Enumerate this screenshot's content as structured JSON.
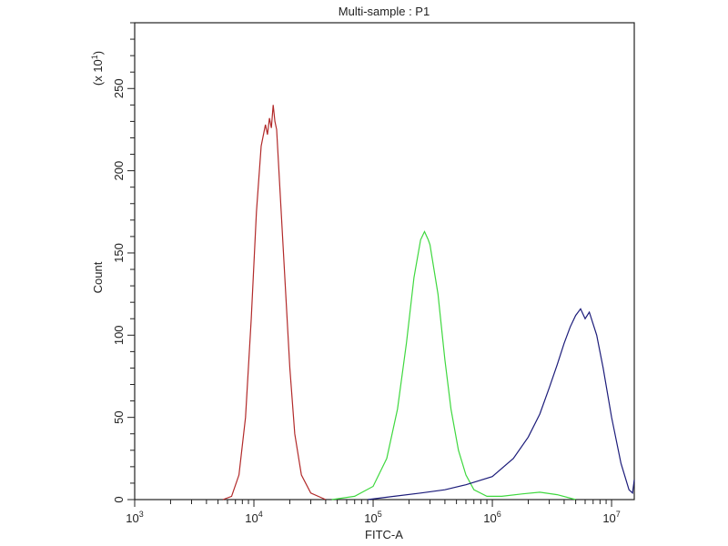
{
  "chart_data": {
    "type": "line",
    "title": "Multi-sample : P1",
    "xlabel": "FITC-A",
    "ylabel": "Count",
    "y_multiplier_label": {
      "base": "(x 10",
      "exp": "1",
      "close": ")"
    },
    "x_scale": "log",
    "xlim": [
      1000,
      15500000
    ],
    "ylim": [
      0,
      290
    ],
    "x_ticks": [
      {
        "value": 1000,
        "base": "10",
        "exp": "3"
      },
      {
        "value": 10000,
        "base": "10",
        "exp": "4"
      },
      {
        "value": 100000,
        "base": "10",
        "exp": "5"
      },
      {
        "value": 1000000,
        "base": "10",
        "exp": "6"
      },
      {
        "value": 10000000,
        "base": "10",
        "exp": "7"
      }
    ],
    "y_ticks": [
      0,
      50,
      100,
      150,
      200,
      250
    ],
    "y_minor_step": 10,
    "grid": false,
    "legend": "none",
    "series": [
      {
        "color": "#b22a2a",
        "points": [
          [
            5500,
            0
          ],
          [
            6500,
            2
          ],
          [
            7500,
            15
          ],
          [
            8500,
            50
          ],
          [
            9500,
            110
          ],
          [
            10500,
            175
          ],
          [
            11500,
            215
          ],
          [
            12500,
            228
          ],
          [
            13000,
            222
          ],
          [
            13500,
            232
          ],
          [
            14000,
            226
          ],
          [
            14500,
            240
          ],
          [
            15000,
            230
          ],
          [
            15500,
            225
          ],
          [
            16500,
            190
          ],
          [
            18000,
            140
          ],
          [
            20000,
            80
          ],
          [
            22000,
            40
          ],
          [
            25000,
            15
          ],
          [
            30000,
            4
          ],
          [
            40000,
            0
          ]
        ]
      },
      {
        "color": "#3fd83f",
        "points": [
          [
            45000,
            0
          ],
          [
            70000,
            2
          ],
          [
            100000,
            8
          ],
          [
            130000,
            25
          ],
          [
            160000,
            55
          ],
          [
            190000,
            95
          ],
          [
            220000,
            135
          ],
          [
            250000,
            158
          ],
          [
            270000,
            163
          ],
          [
            290000,
            158
          ],
          [
            300000,
            155
          ],
          [
            350000,
            125
          ],
          [
            400000,
            85
          ],
          [
            450000,
            55
          ],
          [
            520000,
            30
          ],
          [
            600000,
            15
          ],
          [
            700000,
            6
          ],
          [
            900000,
            2
          ],
          [
            1200000,
            2
          ],
          [
            1800000,
            3.5
          ],
          [
            2500000,
            4.5
          ],
          [
            3500000,
            3
          ],
          [
            5000000,
            0
          ]
        ]
      },
      {
        "color": "#1c1c7a",
        "points": [
          [
            90000,
            0
          ],
          [
            150000,
            2
          ],
          [
            250000,
            4
          ],
          [
            400000,
            6
          ],
          [
            600000,
            9
          ],
          [
            1000000,
            14
          ],
          [
            1500000,
            25
          ],
          [
            2000000,
            38
          ],
          [
            2500000,
            52
          ],
          [
            3000000,
            68
          ],
          [
            3500000,
            82
          ],
          [
            4000000,
            95
          ],
          [
            4500000,
            105
          ],
          [
            5000000,
            112
          ],
          [
            5500000,
            116
          ],
          [
            6000000,
            110
          ],
          [
            6500000,
            114
          ],
          [
            7500000,
            100
          ],
          [
            8500000,
            80
          ],
          [
            10000000,
            50
          ],
          [
            12000000,
            22
          ],
          [
            14000000,
            6
          ],
          [
            15000000,
            4
          ],
          [
            15500000,
            12
          ]
        ]
      }
    ]
  }
}
